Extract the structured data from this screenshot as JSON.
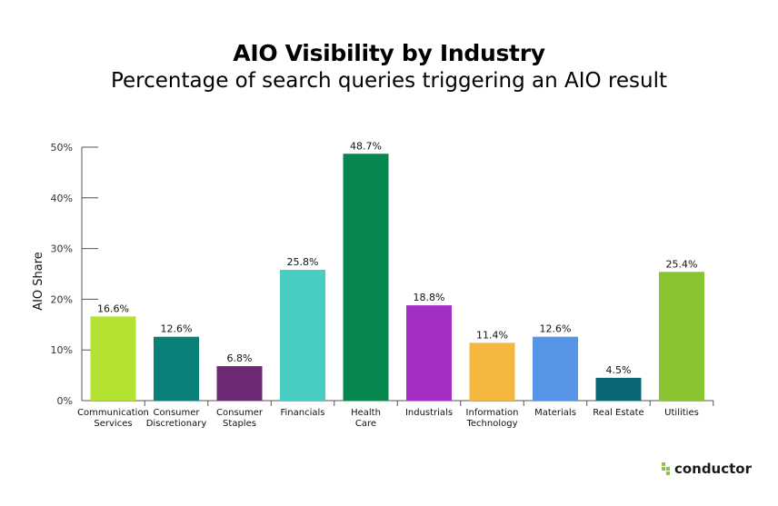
{
  "title": "AIO Visibility by Industry",
  "subtitle": "Percentage of search queries triggering an AIO result",
  "logo_text": "conductor",
  "chart_data": {
    "type": "bar",
    "ylabel": "AIO Share",
    "xlabel": "",
    "ylim": [
      0,
      50
    ],
    "yticks": [
      0,
      10,
      20,
      30,
      40,
      50
    ],
    "ytick_labels": [
      "0%",
      "10%",
      "20%",
      "30%",
      "40%",
      "50%"
    ],
    "grid": false,
    "categories": [
      [
        "Communication",
        "Services"
      ],
      [
        "Consumer",
        "Discretionary"
      ],
      [
        "Consumer",
        "Staples"
      ],
      [
        "Financials"
      ],
      [
        "Health",
        "Care"
      ],
      [
        "Industrials"
      ],
      [
        "Information",
        "Technology"
      ],
      [
        "Materials"
      ],
      [
        "Real Estate"
      ],
      [
        "Utilities"
      ]
    ],
    "values": [
      16.6,
      12.6,
      6.8,
      25.8,
      48.7,
      18.8,
      11.4,
      12.6,
      4.5,
      25.4
    ],
    "value_labels": [
      "16.6%",
      "12.6%",
      "6.8%",
      "25.8%",
      "48.7%",
      "18.8%",
      "11.4%",
      "12.6%",
      "4.5%",
      "25.4%"
    ],
    "colors": [
      "#b3e233",
      "#0a8178",
      "#6c2a74",
      "#47cdc2",
      "#06874d",
      "#a42fc7",
      "#f5b740",
      "#5694e8",
      "#0a6577",
      "#89c431"
    ]
  }
}
